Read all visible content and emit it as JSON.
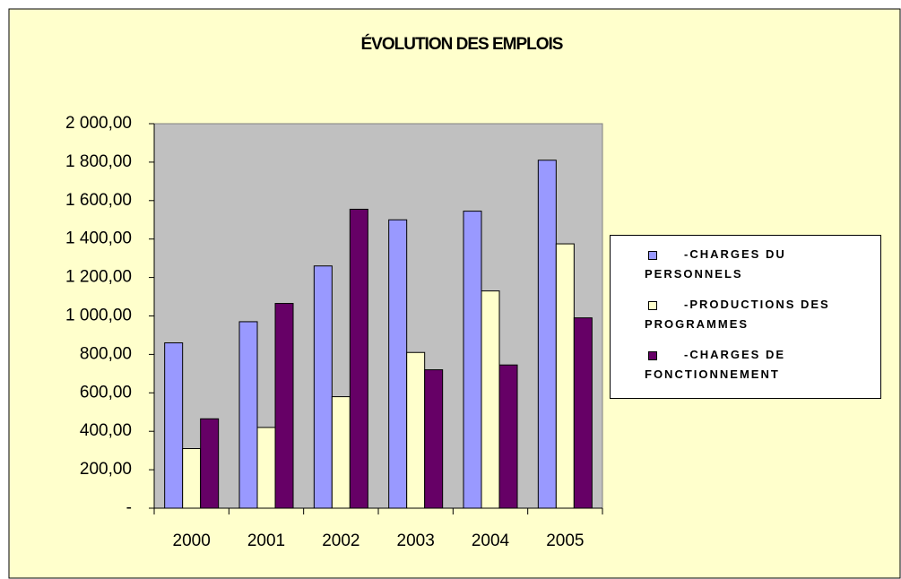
{
  "chart_data": {
    "type": "bar",
    "title": "ÉVOLUTION DES EMPLOIS",
    "categories": [
      "2000",
      "2001",
      "2002",
      "2003",
      "2004",
      "2005"
    ],
    "series": [
      {
        "name": "-CHARGES DU PERSONNELS",
        "color": "#9999ff",
        "values": [
          860,
          970,
          1260,
          1500,
          1545,
          1810
        ]
      },
      {
        "name": "-PRODUCTIONS DES PROGRAMMES",
        "color": "#ffffcc",
        "values": [
          310,
          420,
          580,
          810,
          1130,
          1375
        ]
      },
      {
        "name": "-CHARGES DE FONCTIONNEMENT",
        "color": "#660066",
        "values": [
          465,
          1065,
          1555,
          720,
          745,
          990
        ]
      }
    ],
    "ylim": [
      0,
      2000
    ],
    "yticks": [
      {
        "value": 0,
        "label": "-"
      },
      {
        "value": 200,
        "label": "200,00"
      },
      {
        "value": 400,
        "label": "400,00"
      },
      {
        "value": 600,
        "label": "600,00"
      },
      {
        "value": 800,
        "label": "800,00"
      },
      {
        "value": 1000,
        "label": "1 000,00"
      },
      {
        "value": 1200,
        "label": "1 200,00"
      },
      {
        "value": 1400,
        "label": "1 400,00"
      },
      {
        "value": 1600,
        "label": "1 600,00"
      },
      {
        "value": 1800,
        "label": "1 800,00"
      },
      {
        "value": 2000,
        "label": "2 000,00"
      }
    ],
    "grid": false,
    "legend": "right"
  }
}
